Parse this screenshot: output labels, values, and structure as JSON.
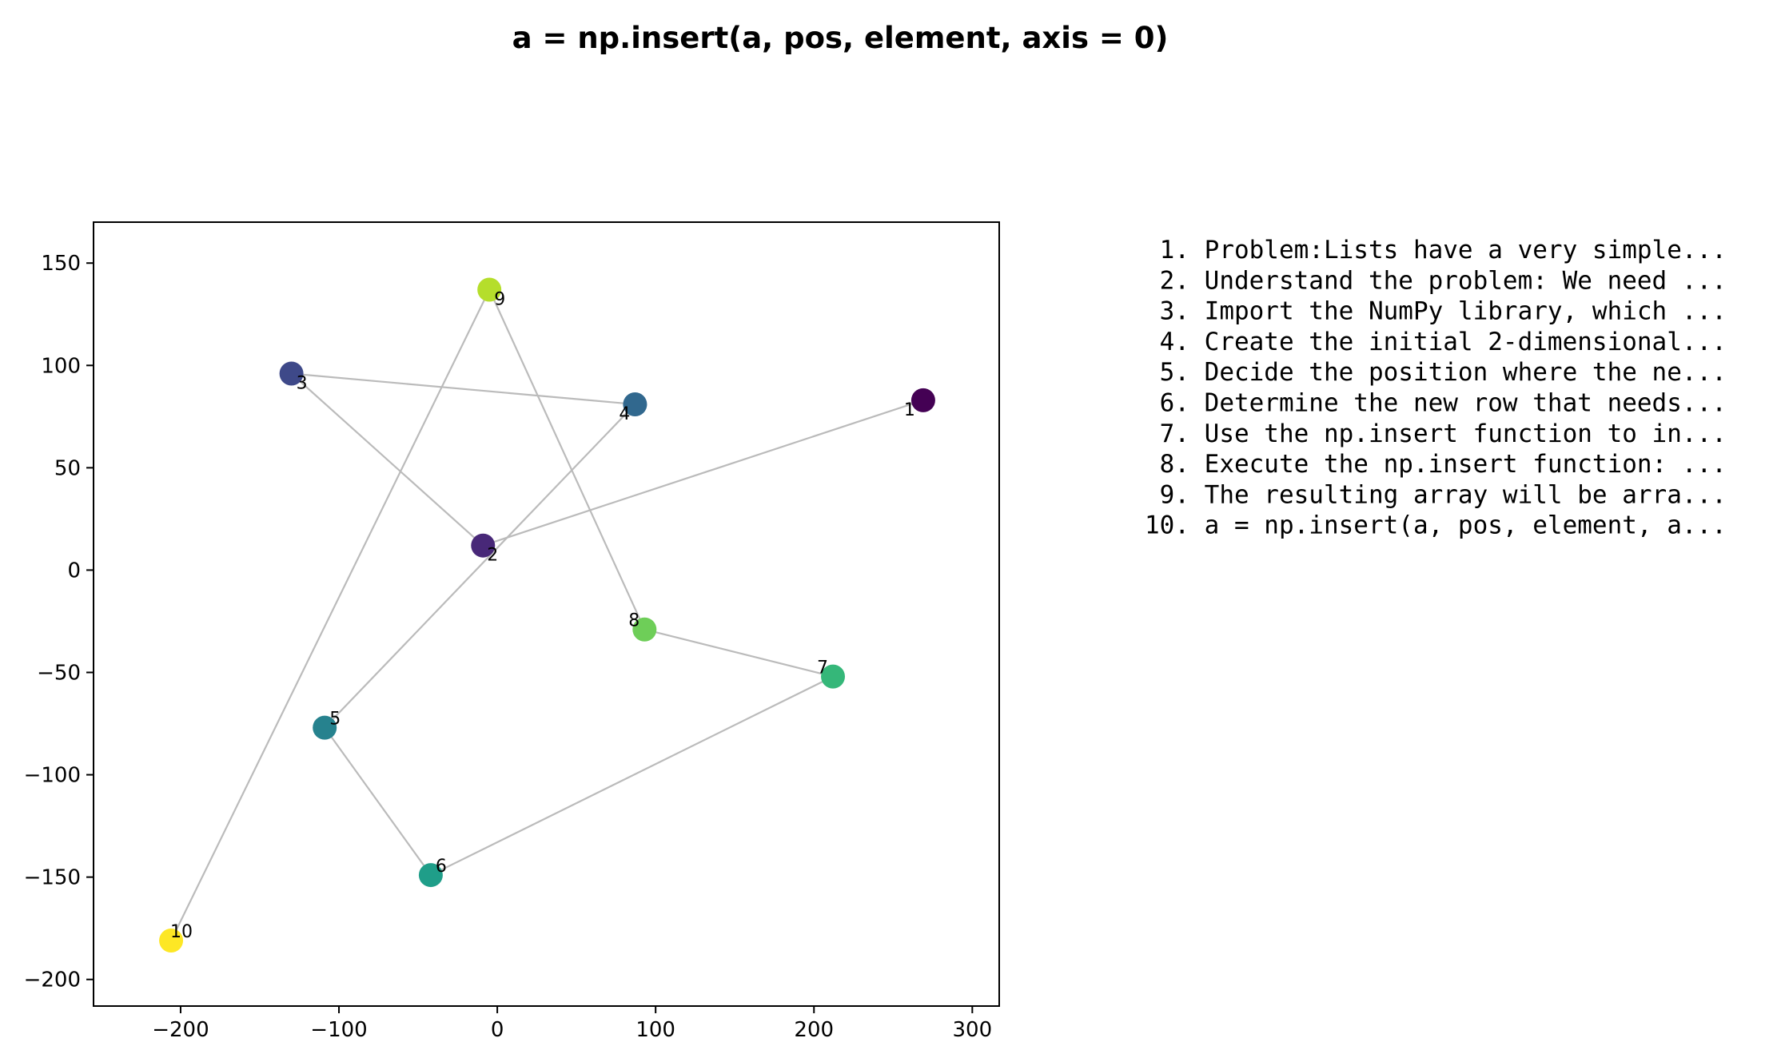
{
  "chart_data": {
    "type": "scatter",
    "title": "a = np.insert(a, pos, element, axis = 0)",
    "xlabel": "",
    "ylabel": "",
    "xlim": [
      -255,
      317
    ],
    "ylim": [
      -213,
      170
    ],
    "xticks": [
      -200,
      -100,
      0,
      100,
      200,
      300
    ],
    "yticks": [
      150,
      100,
      50,
      0,
      -50,
      -100,
      -150,
      -200
    ],
    "xtick_labels": [
      "−200",
      "−100",
      "0",
      "100",
      "200",
      "300"
    ],
    "ytick_labels": [
      "150",
      "100",
      "50",
      "0",
      "−50",
      "−100",
      "−150",
      "−200"
    ],
    "grid": false,
    "connected": true,
    "line_color": "#bbbbbb",
    "colormap": "viridis",
    "points": [
      {
        "label": "1",
        "x": 269,
        "y": 83,
        "color": "#440154"
      },
      {
        "label": "2",
        "x": -9,
        "y": 12,
        "color": "#482878"
      },
      {
        "label": "3",
        "x": -130,
        "y": 96,
        "color": "#3e4989"
      },
      {
        "label": "4",
        "x": 87,
        "y": 81,
        "color": "#31688e"
      },
      {
        "label": "5",
        "x": -109,
        "y": -77,
        "color": "#26828e"
      },
      {
        "label": "6",
        "x": -42,
        "y": -149,
        "color": "#1f9e89"
      },
      {
        "label": "7",
        "x": 212,
        "y": -52,
        "color": "#35b779"
      },
      {
        "label": "8",
        "x": 93,
        "y": -29,
        "color": "#6ece58"
      },
      {
        "label": "9",
        "x": -5,
        "y": 137,
        "color": "#b5de2b"
      },
      {
        "label": "10",
        "x": -206,
        "y": -181,
        "color": "#fde725"
      }
    ],
    "steps": [
      " 1. Problem:Lists have a very simple...",
      " 2. Understand the problem: We need ...",
      " 3. Import the NumPy library, which ...",
      " 4. Create the initial 2-dimensional...",
      " 5. Decide the position where the ne...",
      " 6. Determine the new row that needs...",
      " 7. Use the np.insert function to in...",
      " 8. Execute the np.insert function: ...",
      " 9. The resulting array will be arra...",
      "10. a = np.insert(a, pos, element, a..."
    ]
  }
}
